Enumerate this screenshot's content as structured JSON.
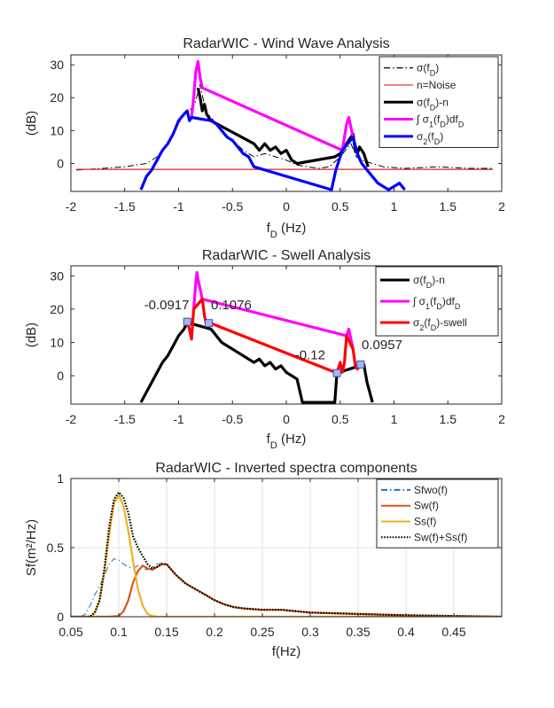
{
  "chart_data": [
    {
      "type": "line",
      "title": "RadarWIC - Wind Wave Analysis",
      "xlabel": "f_D (Hz)",
      "ylabel": "(dB)",
      "xlim": [
        -2,
        2
      ],
      "ylim": [
        -8.5,
        33
      ],
      "xticks": [
        -2,
        -1.5,
        -1,
        -0.5,
        0,
        0.5,
        1,
        1.5,
        2
      ],
      "xtick_labels": [
        "-2",
        "-1.5",
        "-1",
        "-0.5",
        "0",
        "0.5",
        "1",
        "1.5",
        "2"
      ],
      "yticks": [
        0,
        10,
        20,
        30
      ],
      "ytick_labels": [
        "0",
        "10",
        "20",
        "30"
      ],
      "grid": false,
      "legend_position": "top-right",
      "legend": [
        {
          "label": "σ(f_D)",
          "color": "#000000",
          "style": "dashdot"
        },
        {
          "label": "n=Noise",
          "color": "#d62728",
          "style": "solid"
        },
        {
          "label": "σ(f_D)-n",
          "color": "#000000",
          "style": "solid"
        },
        {
          "label": "∫ σ_1(f_D)df_D",
          "color": "#ff00ff",
          "style": "solid"
        },
        {
          "label": "σ_2(f_D)",
          "color": "#0000ff",
          "style": "solid"
        }
      ],
      "series": [
        {
          "name": "σ(f_D)",
          "color": "#000000",
          "x": [
            -1.95,
            -1.7,
            -1.5,
            -1.4,
            -1.3,
            -1.2,
            -1.1,
            -1.0,
            -0.95,
            -0.9,
            -0.85,
            -0.8,
            -0.75,
            -0.7,
            -0.6,
            -0.5,
            -0.4,
            -0.3,
            -0.2,
            -0.1,
            0.0,
            0.1,
            0.2,
            0.3,
            0.4,
            0.5,
            0.55,
            0.6,
            0.65,
            0.7,
            0.8,
            0.9,
            1.1,
            1.4,
            1.7,
            1.92
          ],
          "y": [
            -2,
            -1.5,
            -1,
            -0.5,
            0,
            2,
            6,
            12,
            15,
            16,
            18,
            24,
            16,
            14,
            10,
            7,
            4,
            2,
            3,
            2,
            1,
            -0.5,
            -1,
            -1.5,
            -1,
            2,
            4,
            6,
            2,
            1,
            0,
            -1,
            -1.5,
            -1,
            -1.5,
            -1.5
          ]
        },
        {
          "name": "n=Noise",
          "color": "#d62728",
          "x": [
            -1.95,
            1.92
          ],
          "y": [
            -1.8,
            -1.8
          ]
        },
        {
          "name": "σ(f_D)-n",
          "color": "#000000",
          "x": [
            -0.82,
            -0.8,
            -0.78,
            -0.76,
            -0.74,
            -0.72,
            -0.7,
            -0.3,
            -0.25,
            -0.2,
            -0.15,
            -0.1,
            -0.05,
            0.0,
            0.05,
            0.1,
            0.45,
            0.5,
            0.6,
            0.62,
            0.64,
            0.66,
            0.68,
            0.7,
            0.72,
            0.74,
            0.76
          ],
          "y": [
            23,
            20,
            16,
            18,
            15,
            14,
            13,
            6,
            4,
            6,
            4,
            5,
            3,
            4,
            1,
            0,
            2,
            3,
            8,
            9,
            4,
            3,
            5,
            4,
            3,
            1,
            -1
          ]
        },
        {
          "name": "∫ σ_1(f_D)df_D",
          "color": "#ff00ff",
          "x": [
            -0.88,
            -0.86,
            -0.84,
            -0.82,
            -0.8,
            -0.78,
            0.52,
            0.54,
            0.56,
            0.58,
            0.6,
            0.62
          ],
          "y": [
            14,
            20,
            28,
            31,
            26,
            23,
            4,
            8,
            12,
            14,
            11,
            8
          ]
        },
        {
          "name": "σ_2(f_D)",
          "color": "#0000ff",
          "x": [
            -1.35,
            -1.3,
            -1.25,
            -1.2,
            -1.15,
            -1.1,
            -1.05,
            -1.0,
            -0.95,
            -0.92,
            -0.9,
            -0.88,
            -0.7,
            -0.65,
            -0.6,
            -0.55,
            -0.5,
            -0.45,
            -0.4,
            -0.35,
            -0.3,
            0.42,
            0.46,
            0.5,
            0.52,
            0.62,
            0.66,
            0.7,
            0.75,
            0.8,
            0.85,
            0.9,
            0.95,
            1.0,
            1.05,
            1.1
          ],
          "y": [
            -8,
            -4,
            -2,
            1,
            4,
            6,
            9,
            13,
            15,
            16,
            13,
            14,
            13,
            12,
            10,
            8,
            7,
            5,
            3,
            2,
            -1,
            -8,
            -2,
            2,
            4,
            8,
            3,
            0,
            -2,
            -4,
            -6,
            -7,
            -8,
            -7,
            -6,
            -8
          ]
        }
      ]
    },
    {
      "type": "line",
      "title": "RadarWIC - Swell Analysis",
      "xlabel": "f_D (Hz)",
      "ylabel": "(dB)",
      "xlim": [
        -2,
        2
      ],
      "ylim": [
        -8.5,
        33
      ],
      "xticks": [
        -2,
        -1.5,
        -1,
        -0.5,
        0,
        0.5,
        1,
        1.5,
        2
      ],
      "xtick_labels": [
        "-2",
        "-1.5",
        "-1",
        "-0.5",
        "0",
        "0.5",
        "1",
        "1.5",
        "2"
      ],
      "yticks": [
        0,
        10,
        20,
        30
      ],
      "ytick_labels": [
        "0",
        "10",
        "20",
        "30"
      ],
      "grid": false,
      "legend_position": "top-right",
      "legend": [
        {
          "label": "σ(f_D)-n",
          "color": "#000000",
          "style": "solid"
        },
        {
          "label": "∫ σ_1(f_D)df_D",
          "color": "#ff00ff",
          "style": "solid"
        },
        {
          "label": "σ_2(f_D)-swell",
          "color": "#ff0000",
          "style": "solid"
        }
      ],
      "annotations": [
        {
          "text": "-0.0917",
          "x": -1.32,
          "y": 20
        },
        {
          "text": "0.1076",
          "x": -0.7,
          "y": 20
        },
        {
          "text": "-0.12",
          "x": 0.08,
          "y": 5
        },
        {
          "text": "0.0957",
          "x": 0.7,
          "y": 8
        }
      ],
      "markers": [
        {
          "x": -0.92,
          "y": 16.2
        },
        {
          "x": -0.72,
          "y": 15.8
        },
        {
          "x": 0.47,
          "y": 0.8
        },
        {
          "x": 0.69,
          "y": 3.4
        }
      ],
      "series": [
        {
          "name": "σ(f_D)-n",
          "color": "#000000",
          "x": [
            -1.35,
            -1.3,
            -1.25,
            -1.2,
            -1.15,
            -1.1,
            -1.05,
            -1.0,
            -0.95,
            -0.92,
            -0.7,
            -0.65,
            -0.6,
            -0.55,
            -0.5,
            -0.45,
            -0.4,
            -0.35,
            -0.3,
            -0.25,
            -0.2,
            -0.15,
            -0.1,
            -0.05,
            0.0,
            0.05,
            0.1,
            0.15,
            0.45,
            0.47,
            0.72,
            0.75,
            0.8
          ],
          "y": [
            -8,
            -5,
            -2,
            1,
            4,
            6,
            9,
            12,
            14,
            16,
            14,
            12,
            10,
            9,
            8,
            7,
            6,
            5,
            4,
            5,
            3,
            4,
            2,
            3,
            1,
            0,
            -1,
            -8,
            -8,
            0.8,
            3.4,
            -2,
            -8
          ]
        },
        {
          "name": "∫ σ_1(f_D)df_D",
          "color": "#ff00ff",
          "x": [
            -0.86,
            -0.84,
            -0.83,
            -0.82,
            -0.8,
            -0.78,
            0.56,
            0.58,
            0.6,
            0.62
          ],
          "y": [
            20,
            28,
            31,
            29,
            26,
            23,
            12,
            14,
            11,
            8
          ]
        },
        {
          "name": "σ_2(f_D)-swell",
          "color": "#ff0000",
          "x": [
            -0.92,
            -0.9,
            -0.88,
            -0.86,
            -0.78,
            -0.76,
            -0.74,
            -0.72,
            0.47,
            0.5,
            0.52,
            0.54,
            0.56,
            0.62,
            0.64,
            0.66,
            0.69
          ],
          "y": [
            16,
            14,
            11,
            20,
            23,
            18,
            15,
            16,
            0.8,
            4,
            1,
            4,
            12,
            8,
            3,
            2,
            3.4
          ]
        }
      ]
    },
    {
      "type": "line",
      "title": "RadarWIC - Inverted spectra components",
      "xlabel": "f(Hz)",
      "ylabel": "Sf(m²/Hz)",
      "xlim": [
        0.05,
        0.5
      ],
      "ylim": [
        0,
        1
      ],
      "xticks": [
        0.05,
        0.1,
        0.15,
        0.2,
        0.25,
        0.3,
        0.35,
        0.4,
        0.45
      ],
      "xtick_labels": [
        "0.05",
        "0.1",
        "0.15",
        "0.2",
        "0.25",
        "0.3",
        "0.35",
        "0.4",
        "0.45"
      ],
      "yticks": [
        0,
        0.5,
        1
      ],
      "ytick_labels": [
        "0",
        "0.5",
        "1"
      ],
      "grid": true,
      "legend_position": "top-right",
      "legend": [
        {
          "label": "Sfwo(f)",
          "color": "#1f77b4",
          "style": "dashdot"
        },
        {
          "label": "Sw(f)",
          "color": "#d95319",
          "style": "solid"
        },
        {
          "label": "Ss(f)",
          "color": "#edb120",
          "style": "solid"
        },
        {
          "label": "Sw(f)+Ss(f)",
          "color": "#000000",
          "style": "dotted"
        }
      ],
      "series": [
        {
          "name": "Sfwo(f)",
          "color": "#1f77b4",
          "x": [
            0.06,
            0.065,
            0.07,
            0.075,
            0.08,
            0.085,
            0.09,
            0.095,
            0.1,
            0.105,
            0.11,
            0.115,
            0.12,
            0.125,
            0.13,
            0.135,
            0.14,
            0.145,
            0.15,
            0.155,
            0.16,
            0.17,
            0.18,
            0.19,
            0.2,
            0.21,
            0.22,
            0.23,
            0.25,
            0.27,
            0.3,
            0.35,
            0.4,
            0.5
          ],
          "y": [
            0.0,
            0.02,
            0.08,
            0.16,
            0.22,
            0.3,
            0.38,
            0.42,
            0.41,
            0.38,
            0.36,
            0.35,
            0.37,
            0.35,
            0.34,
            0.36,
            0.38,
            0.39,
            0.38,
            0.34,
            0.3,
            0.24,
            0.2,
            0.16,
            0.12,
            0.09,
            0.07,
            0.06,
            0.05,
            0.05,
            0.03,
            0.02,
            0.01,
            0.0
          ]
        },
        {
          "name": "Sw(f)",
          "color": "#d95319",
          "x": [
            0.05,
            0.09,
            0.1,
            0.105,
            0.11,
            0.115,
            0.12,
            0.125,
            0.13,
            0.135,
            0.14,
            0.145,
            0.15,
            0.155,
            0.16,
            0.17,
            0.18,
            0.19,
            0.2,
            0.21,
            0.22,
            0.23,
            0.25,
            0.27,
            0.3,
            0.35,
            0.4,
            0.5
          ],
          "y": [
            0.0,
            0.0,
            0.005,
            0.04,
            0.12,
            0.25,
            0.33,
            0.37,
            0.35,
            0.34,
            0.36,
            0.38,
            0.38,
            0.34,
            0.3,
            0.24,
            0.2,
            0.16,
            0.12,
            0.09,
            0.07,
            0.06,
            0.05,
            0.05,
            0.03,
            0.02,
            0.01,
            0.0
          ]
        },
        {
          "name": "Ss(f)",
          "color": "#edb120",
          "x": [
            0.05,
            0.07,
            0.075,
            0.08,
            0.085,
            0.09,
            0.095,
            0.1,
            0.105,
            0.11,
            0.115,
            0.12,
            0.125,
            0.13,
            0.135,
            0.14,
            0.15,
            0.5
          ],
          "y": [
            0.0,
            0.0,
            0.03,
            0.12,
            0.32,
            0.6,
            0.82,
            0.88,
            0.8,
            0.62,
            0.4,
            0.2,
            0.08,
            0.02,
            0.005,
            0.0,
            0.0,
            0.0
          ]
        },
        {
          "name": "Sw(f)+Ss(f)",
          "color": "#000000",
          "x": [
            0.05,
            0.07,
            0.075,
            0.08,
            0.085,
            0.09,
            0.095,
            0.1,
            0.105,
            0.11,
            0.115,
            0.12,
            0.125,
            0.13,
            0.135,
            0.14,
            0.145,
            0.15,
            0.155,
            0.16,
            0.17,
            0.18,
            0.19,
            0.2,
            0.21,
            0.22,
            0.23,
            0.25,
            0.27,
            0.3,
            0.35,
            0.4,
            0.5
          ],
          "y": [
            0.0,
            0.0,
            0.03,
            0.12,
            0.35,
            0.65,
            0.85,
            0.9,
            0.86,
            0.75,
            0.58,
            0.5,
            0.44,
            0.38,
            0.35,
            0.36,
            0.38,
            0.38,
            0.34,
            0.3,
            0.24,
            0.2,
            0.16,
            0.12,
            0.09,
            0.07,
            0.06,
            0.05,
            0.05,
            0.03,
            0.02,
            0.01,
            0.0
          ]
        }
      ]
    }
  ]
}
